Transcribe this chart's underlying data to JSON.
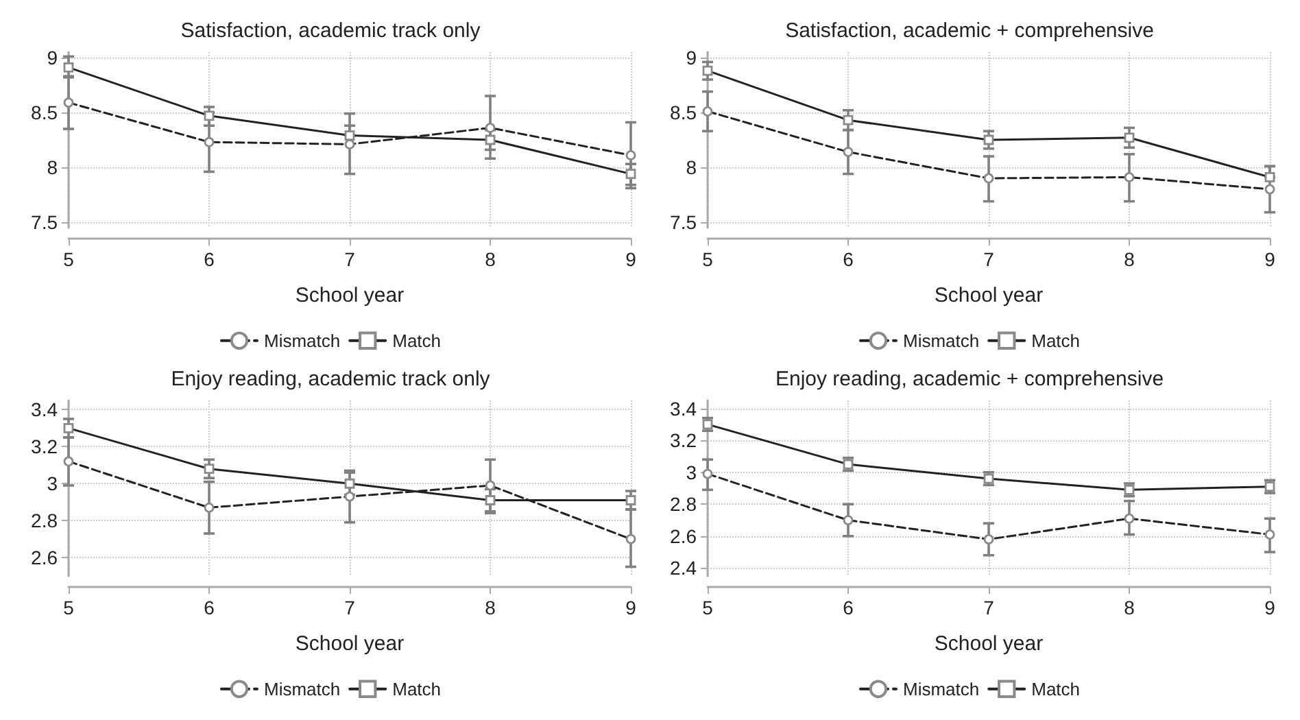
{
  "chart_data": [
    {
      "type": "line",
      "title": "Satisfaction, academic track only",
      "xlabel": "School year",
      "x": [
        5,
        6,
        7,
        8,
        9
      ],
      "xlim": [
        5,
        9
      ],
      "xticks": [
        5,
        6,
        7,
        8,
        9
      ],
      "ylim": [
        7.45,
        9.05
      ],
      "yticks": [
        7.5,
        8,
        8.5,
        9
      ],
      "grid": true,
      "legend": "bottom",
      "series": [
        {
          "name": "Mismatch",
          "color": "#222222",
          "marker": "circle",
          "line_style": "dashed",
          "values": [
            8.59,
            8.23,
            8.21,
            8.36,
            8.11
          ],
          "errors": [
            [
              8.35,
              8.83
            ],
            [
              7.96,
              8.5
            ],
            [
              7.94,
              8.49
            ],
            [
              8.08,
              8.65
            ],
            [
              7.81,
              8.41
            ]
          ]
        },
        {
          "name": "Match",
          "color": "#222222",
          "marker": "square",
          "line_style": "solid",
          "values": [
            8.91,
            8.47,
            8.29,
            8.25,
            7.94
          ],
          "errors": [
            [
              8.82,
              9.01
            ],
            [
              8.38,
              8.55
            ],
            [
              8.29,
              8.38
            ],
            [
              8.16,
              8.34
            ],
            [
              7.84,
              8.03
            ]
          ]
        }
      ]
    },
    {
      "type": "line",
      "title": "Satisfaction, academic + comprehensive",
      "xlabel": "School year",
      "x": [
        5,
        6,
        7,
        8,
        9
      ],
      "xlim": [
        5,
        9
      ],
      "xticks": [
        5,
        6,
        7,
        8,
        9
      ],
      "ylim": [
        7.45,
        9.05
      ],
      "yticks": [
        7.5,
        8,
        8.5,
        9
      ],
      "grid": true,
      "legend": "bottom",
      "series": [
        {
          "name": "Mismatch",
          "color": "#222222",
          "marker": "circle",
          "line_style": "dashed",
          "values": [
            8.51,
            8.14,
            7.9,
            7.91,
            7.8
          ],
          "errors": [
            [
              8.33,
              8.69
            ],
            [
              7.94,
              8.34
            ],
            [
              7.69,
              8.1
            ],
            [
              7.69,
              8.12
            ],
            [
              7.59,
              8.01
            ]
          ]
        },
        {
          "name": "Match",
          "color": "#222222",
          "marker": "square",
          "line_style": "solid",
          "values": [
            8.88,
            8.43,
            8.25,
            8.27,
            7.91
          ],
          "errors": [
            [
              8.8,
              8.96
            ],
            [
              8.34,
              8.52
            ],
            [
              8.17,
              8.33
            ],
            [
              8.18,
              8.36
            ],
            [
              7.91,
              8.01
            ]
          ]
        }
      ]
    },
    {
      "type": "line",
      "title": "Enjoy reading, academic track only",
      "xlabel": "School year",
      "x": [
        5,
        6,
        7,
        8,
        9
      ],
      "xlim": [
        5,
        9
      ],
      "xticks": [
        5,
        6,
        7,
        8,
        9
      ],
      "ylim": [
        2.5,
        3.45
      ],
      "yticks": [
        2.6,
        2.8,
        3,
        3.2,
        3.4
      ],
      "grid": true,
      "legend": "bottom",
      "series": [
        {
          "name": "Mismatch",
          "color": "#222222",
          "marker": "circle",
          "line_style": "dashed",
          "values": [
            3.12,
            2.87,
            2.93,
            2.99,
            2.7
          ],
          "errors": [
            [
              2.99,
              3.25
            ],
            [
              2.73,
              3.01
            ],
            [
              2.79,
              3.07
            ],
            [
              2.85,
              3.13
            ],
            [
              2.55,
              2.86
            ]
          ]
        },
        {
          "name": "Match",
          "color": "#222222",
          "marker": "square",
          "line_style": "solid",
          "values": [
            3.3,
            3.08,
            3.0,
            2.91,
            2.91
          ],
          "errors": [
            [
              3.25,
              3.35
            ],
            [
              3.03,
              3.13
            ],
            [
              2.94,
              3.06
            ],
            [
              2.84,
              2.97
            ],
            [
              2.86,
              2.96
            ]
          ]
        }
      ]
    },
    {
      "type": "line",
      "title": "Enjoy reading, academic + comprehensive",
      "xlabel": "School year",
      "x": [
        5,
        6,
        7,
        8,
        9
      ],
      "xlim": [
        5,
        9
      ],
      "xticks": [
        5,
        6,
        7,
        8,
        9
      ],
      "ylim": [
        2.35,
        3.45
      ],
      "yticks": [
        2.4,
        2.6,
        2.8,
        3,
        3.2,
        3.4
      ],
      "grid": true,
      "legend": "bottom",
      "series": [
        {
          "name": "Mismatch",
          "color": "#222222",
          "marker": "circle",
          "line_style": "dashed",
          "values": [
            2.99,
            2.7,
            2.58,
            2.71,
            2.61
          ],
          "errors": [
            [
              2.89,
              3.08
            ],
            [
              2.6,
              2.8
            ],
            [
              2.48,
              2.68
            ],
            [
              2.61,
              2.82
            ],
            [
              2.5,
              2.71
            ]
          ]
        },
        {
          "name": "Match",
          "color": "#222222",
          "marker": "square",
          "line_style": "solid",
          "values": [
            3.3,
            3.05,
            2.96,
            2.89,
            2.91
          ],
          "errors": [
            [
              3.26,
              3.34
            ],
            [
              3.01,
              3.09
            ],
            [
              2.92,
              3.0
            ],
            [
              2.85,
              2.93
            ],
            [
              2.87,
              2.95
            ]
          ]
        }
      ]
    }
  ]
}
